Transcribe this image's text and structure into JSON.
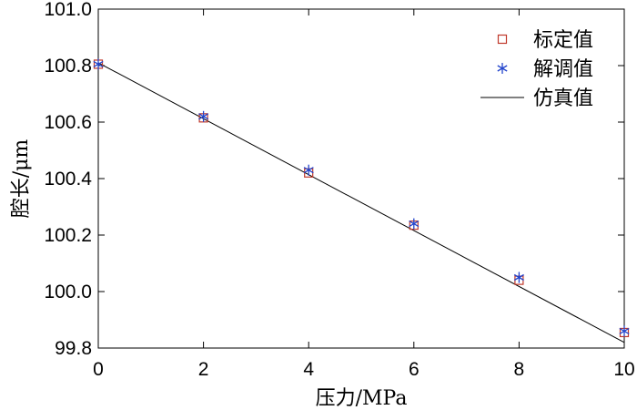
{
  "chart_data": {
    "type": "scatter",
    "xlabel": "压力/MPa",
    "ylabel": "腔长/μm",
    "xlim": [
      0,
      10
    ],
    "ylim": [
      99.8,
      101.0
    ],
    "xticks": [
      0,
      2,
      4,
      6,
      8,
      10
    ],
    "xtick_labels": [
      "0",
      "2",
      "4",
      "6",
      "8",
      "10"
    ],
    "yticks": [
      99.8,
      100.0,
      100.2,
      100.4,
      100.6,
      100.8,
      101.0
    ],
    "ytick_labels": [
      "99.8",
      "100.0",
      "100.2",
      "100.4",
      "100.6",
      "100.8",
      "101.0"
    ],
    "legend_position": "top-right",
    "series": [
      {
        "name": "标定值",
        "marker": "square",
        "color": "#c0392b",
        "x": [
          0,
          2,
          4,
          6,
          8,
          10
        ],
        "y": [
          100.805,
          100.615,
          100.42,
          100.235,
          100.04,
          99.855
        ]
      },
      {
        "name": "解调值",
        "marker": "asterisk",
        "color": "#2244cc",
        "x": [
          0,
          2,
          4,
          6,
          8,
          10
        ],
        "y": [
          100.805,
          100.62,
          100.43,
          100.24,
          100.05,
          99.86
        ]
      },
      {
        "name": "仿真值",
        "marker": "line",
        "color": "#000000",
        "x": [
          0,
          10
        ],
        "y": [
          100.81,
          99.82
        ]
      }
    ]
  }
}
